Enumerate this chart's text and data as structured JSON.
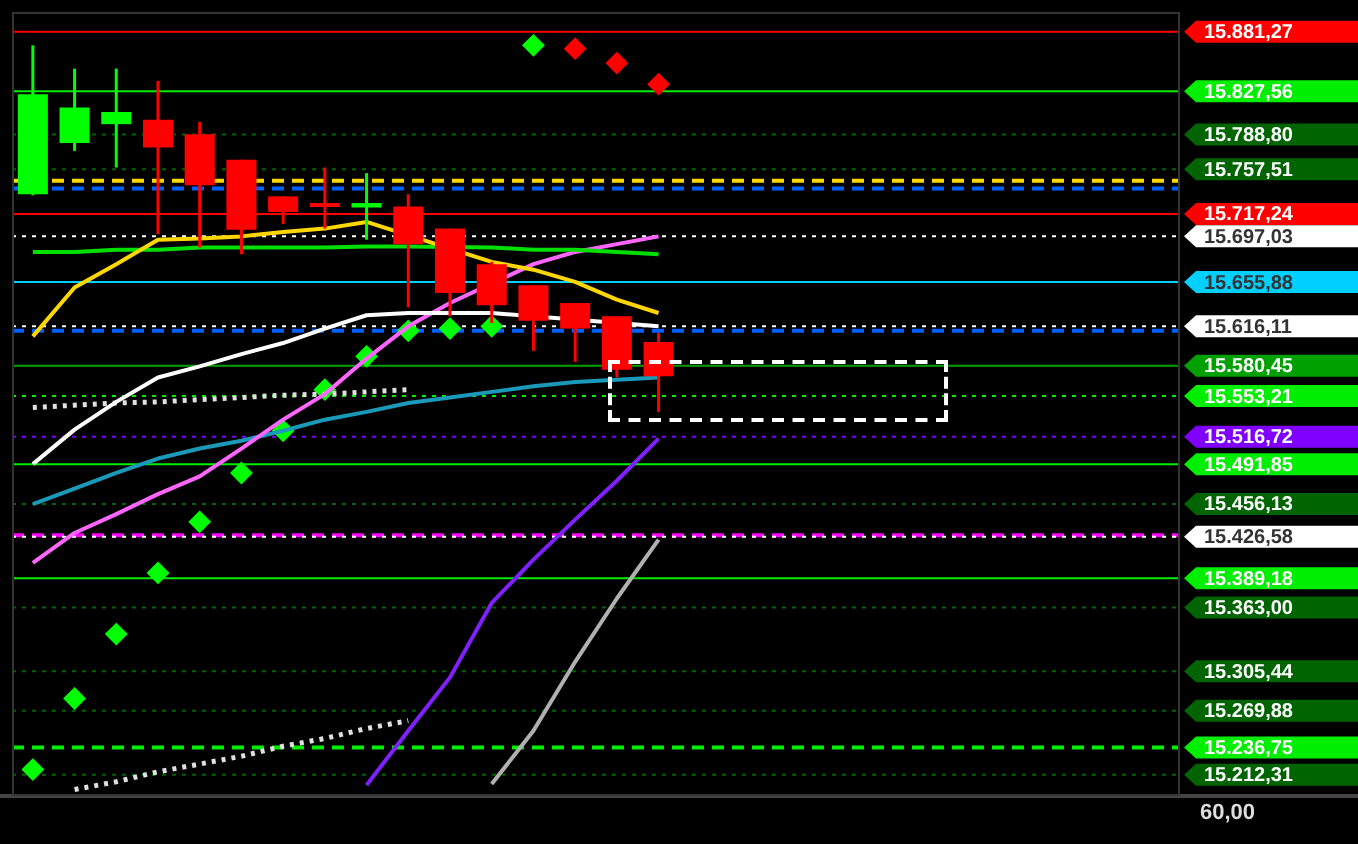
{
  "chart_data": {
    "type": "candlestick",
    "categories": [
      null,
      null,
      null,
      null,
      null,
      null,
      null,
      null,
      null,
      null,
      null,
      null,
      null,
      null,
      null,
      null,
      null,
      null,
      null,
      null,
      null,
      null,
      null,
      null,
      null,
      null,
      null,
      null
    ],
    "ohlc": [
      [
        15735,
        15869,
        15734,
        15825
      ],
      [
        15781,
        15848,
        15774,
        15813
      ],
      [
        15798,
        15848,
        15759,
        15809
      ],
      [
        15802,
        15837,
        15699,
        15777
      ],
      [
        15789,
        15800,
        15687,
        15743
      ],
      [
        15766,
        15766,
        15681,
        15703
      ],
      [
        15733,
        15733,
        15708,
        15719
      ],
      [
        15727,
        15759,
        15704,
        15724
      ],
      [
        15723,
        15754,
        15694,
        15727
      ],
      [
        15724,
        15735,
        15633,
        15690
      ],
      [
        15704,
        15704,
        15625,
        15646
      ],
      [
        15672,
        15674,
        15619,
        15635
      ],
      [
        15653,
        15653,
        15594,
        15621
      ],
      [
        15637,
        15637,
        15584,
        15614
      ],
      [
        15625,
        15625,
        15570,
        15577
      ],
      [
        15602,
        15610,
        15539,
        15571
      ],
      null,
      null,
      null,
      null,
      null,
      null,
      null,
      null,
      null,
      null,
      null,
      null
    ],
    "colors": [
      "#00ff00",
      "#00ff00",
      "#00ff00",
      "#ff0000",
      "#ff0000",
      "#ff0000",
      "#ff0000",
      "#ff0000",
      "#00ff00",
      "#ff0000",
      "#ff0000",
      "#ff0000",
      "#ff0000",
      "#ff0000",
      "#ff0000",
      "#ff0000",
      null,
      null,
      null,
      null,
      null,
      null,
      null,
      null,
      null,
      null,
      null,
      null
    ],
    "ylim": [
      15195,
      15899
    ],
    "tick_labels": false,
    "series": [
      {
        "type": "line",
        "color": "#ffd700",
        "line_style": "solid",
        "values": [
          15607,
          15651,
          15672,
          15694,
          15695,
          15697,
          15701,
          15704,
          15710,
          null,
          null,
          15674,
          15667,
          15656,
          15640,
          15628,
          null,
          null,
          null,
          null,
          null,
          null,
          null,
          null,
          null,
          null,
          null,
          null
        ]
      },
      {
        "type": "line",
        "color": "#00e000",
        "line_style": "solid",
        "values": [
          15683,
          15683,
          15685,
          15685,
          15687,
          15687,
          15687,
          15687,
          15688,
          15688,
          null,
          15687,
          15685,
          15685,
          15683,
          15681,
          null,
          null,
          null,
          null,
          null,
          null,
          null,
          null,
          null,
          null,
          null,
          null
        ]
      },
      {
        "type": "line",
        "color": "#ffffff",
        "line_style": "solid",
        "values": [
          15492,
          15523,
          15548,
          15570,
          15580,
          15591,
          15601,
          15614,
          15626,
          15628,
          15628,
          15628,
          null,
          null,
          null,
          15616,
          null,
          null,
          null,
          null,
          null,
          null,
          null,
          null,
          null,
          null,
          null,
          null
        ]
      },
      {
        "type": "line",
        "color": "#ff66ff",
        "line_style": "solid",
        "values": [
          15403,
          15430,
          15447,
          15465,
          15481,
          15506,
          15532,
          15555,
          15587,
          15616,
          15637,
          null,
          15672,
          15683,
          15690,
          15697,
          null,
          null,
          null,
          null,
          null,
          null,
          null,
          null,
          null,
          null,
          null,
          null
        ]
      },
      {
        "type": "line",
        "color": "#1a9ab8",
        "line_style": "solid",
        "values": [
          15456,
          15470,
          15484,
          15497,
          15506,
          15513,
          15522,
          15532,
          15539,
          15547,
          15552,
          15557,
          15562,
          15566,
          15568,
          15570,
          null,
          null,
          null,
          null,
          null,
          null,
          null,
          null,
          null,
          null,
          null,
          null
        ]
      },
      {
        "type": "line",
        "color": "#8020ff",
        "line_style": "solid",
        "values": [
          null,
          null,
          null,
          null,
          null,
          null,
          null,
          null,
          15203,
          15252,
          15300,
          15367,
          15406,
          15442,
          15477,
          15515,
          null,
          null,
          null,
          null,
          null,
          null,
          null,
          null,
          null,
          null,
          null,
          null
        ]
      },
      {
        "type": "line",
        "color": "#b0b0b0",
        "line_style": "solid",
        "values": [
          null,
          null,
          null,
          null,
          null,
          null,
          null,
          null,
          null,
          null,
          null,
          15204,
          15252,
          15314,
          15371,
          15424,
          null,
          null,
          null,
          null,
          null,
          null,
          null,
          null,
          null,
          null,
          null,
          null
        ]
      },
      {
        "type": "line",
        "color": "#e0e0e0",
        "line_style": "dotted",
        "values": [
          15543,
          15545,
          15547,
          15548,
          15550,
          15552,
          15554,
          15555,
          15557,
          15559,
          null,
          null,
          null,
          null,
          null,
          null,
          null,
          null,
          null,
          null,
          null,
          null,
          null,
          null,
          null,
          null,
          null,
          null
        ]
      },
      {
        "type": "line",
        "color": "#e0e0e0",
        "line_style": "dotted",
        "values": [
          null,
          15199,
          15206,
          15215,
          15222,
          15229,
          15238,
          15245,
          15254,
          15261,
          null,
          null,
          null,
          null,
          null,
          null,
          null,
          null,
          null,
          null,
          null,
          null,
          null,
          null,
          null,
          null,
          null,
          null
        ]
      },
      {
        "type": "scatter",
        "color": "#00ff00",
        "marker": "diamond",
        "values": [
          15217,
          15281,
          15339,
          15394,
          15440,
          15484,
          15522,
          15559,
          15589,
          15612,
          15614,
          15616,
          15869,
          null,
          null,
          null,
          null,
          null,
          null,
          null,
          null,
          null,
          null,
          null,
          null,
          null,
          null,
          null
        ]
      },
      {
        "type": "scatter",
        "color": "#ff0000",
        "marker": "diamond",
        "values": [
          null,
          null,
          null,
          null,
          null,
          null,
          null,
          null,
          null,
          null,
          null,
          null,
          null,
          15866,
          15853,
          15834,
          null,
          null,
          null,
          null,
          null,
          null,
          null,
          null,
          null,
          null,
          null,
          null
        ]
      }
    ],
    "ref_lines": [
      {
        "axis": "y",
        "value": 15881.27,
        "label": "15.881,27",
        "color": "#ff0000",
        "line_style": "solid"
      },
      {
        "axis": "y",
        "value": 15827.56,
        "label": "15.827,56",
        "color": "#00ee00",
        "line_style": "solid"
      },
      {
        "axis": "y",
        "value": 15788.8,
        "label": "15.788,80",
        "color": "#006400",
        "line_style": "dotted"
      },
      {
        "axis": "y",
        "value": 15757.51,
        "label": "15.757,51",
        "color": "#006400",
        "line_style": "dotted"
      },
      {
        "axis": "y",
        "value": 15747,
        "color": "#ffd700",
        "line_style": "dashed"
      },
      {
        "axis": "y",
        "value": 15740,
        "color": "#0060ff",
        "line_style": "dashed"
      },
      {
        "axis": "y",
        "value": 15717.24,
        "label": "15.717,24",
        "color": "#ff0000",
        "line_style": "solid"
      },
      {
        "axis": "y",
        "value": 15697.03,
        "label": "15.697,03",
        "color": "#ffffff",
        "line_style": "dotted"
      },
      {
        "axis": "y",
        "value": 15655.88,
        "label": "15.655,88",
        "color": "#00d0ff",
        "line_style": "solid"
      },
      {
        "axis": "y",
        "value": 15616.11,
        "label": "15.616,11",
        "color": "#ffffff",
        "line_style": "dotted"
      },
      {
        "axis": "y",
        "value": 15612,
        "color": "#0060ff",
        "line_style": "dashed"
      },
      {
        "axis": "y",
        "value": 15580.45,
        "label": "15.580,45",
        "color": "#00a000",
        "line_style": "solid"
      },
      {
        "axis": "y",
        "value": 15553.21,
        "label": "15.553,21",
        "color": "#00ee00",
        "line_style": "dotted"
      },
      {
        "axis": "y",
        "value": 15516.72,
        "label": "15.516,72",
        "color": "#8000ff",
        "line_style": "dotted"
      },
      {
        "axis": "y",
        "value": 15491.85,
        "label": "15.491,85",
        "color": "#00ee00",
        "line_style": "solid"
      },
      {
        "axis": "y",
        "value": 15456.13,
        "label": "15.456,13",
        "color": "#006400",
        "line_style": "dotted"
      },
      {
        "axis": "y",
        "value": 15428,
        "color": "#ff00ff",
        "line_style": "dashed"
      },
      {
        "axis": "y",
        "value": 15426.58,
        "label": "15.426,58",
        "color": "#ffffff",
        "line_style": "dotted"
      },
      {
        "axis": "y",
        "value": 15389.18,
        "label": "15.389,18",
        "color": "#00ee00",
        "line_style": "solid"
      },
      {
        "axis": "y",
        "value": 15363,
        "label": "15.363,00",
        "color": "#006400",
        "line_style": "dotted"
      },
      {
        "axis": "y",
        "value": 15305.44,
        "label": "15.305,44",
        "color": "#006400",
        "line_style": "dotted"
      },
      {
        "axis": "y",
        "value": 15269.88,
        "label": "15.269,88",
        "color": "#006400",
        "line_style": "dotted"
      },
      {
        "axis": "y",
        "value": 15236.75,
        "label": "15.236,75",
        "color": "#00ee00",
        "line_style": "dashed"
      },
      {
        "axis": "y",
        "value": 15212.31,
        "label": "15.212,31",
        "color": "#006400",
        "line_style": "dotted"
      }
    ],
    "annotations": [
      "60,00"
    ]
  }
}
